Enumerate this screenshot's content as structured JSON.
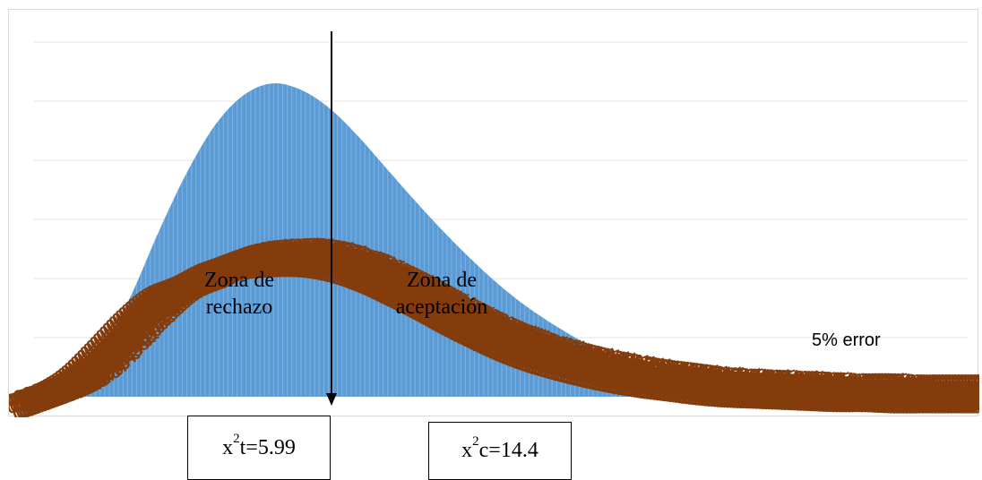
{
  "chart_data": {
    "type": "area",
    "title": "",
    "xlabel": "",
    "ylabel": "",
    "grid": true,
    "legend": "none",
    "xlim": [
      0,
      34
    ],
    "ylim": [
      0,
      0.3
    ],
    "gridlines_y": [
      0.05,
      0.1,
      0.15,
      0.2,
      0.25,
      0.3
    ],
    "series": [
      {
        "kind": "area",
        "color": "#5b9bd5",
        "x": [
          0,
          1,
          2,
          3,
          4,
          5,
          6,
          7,
          8,
          9,
          10,
          11,
          12,
          13,
          14,
          15,
          16,
          17,
          18,
          19,
          20,
          21,
          22,
          23,
          24,
          25,
          26,
          27,
          28,
          29,
          30,
          31,
          32,
          33,
          34
        ],
        "y": [
          0.0,
          0.0,
          0.005,
          0.04,
          0.085,
          0.14,
          0.19,
          0.23,
          0.255,
          0.265,
          0.26,
          0.245,
          0.222,
          0.195,
          0.168,
          0.142,
          0.118,
          0.096,
          0.077,
          0.061,
          0.047,
          0.036,
          0.027,
          0.02,
          0.015,
          0.011,
          0.008,
          0.006,
          0.004,
          0.003,
          0.002,
          0.0015,
          0.001,
          0.0005,
          0.0
        ]
      },
      {
        "kind": "data-labels",
        "color": "#843c0c",
        "x": [
          0,
          1,
          2,
          3,
          4,
          5,
          6,
          7,
          8,
          9,
          10,
          11,
          12,
          13,
          14,
          15,
          16,
          17,
          18,
          19,
          20,
          21,
          22,
          23,
          24,
          25,
          26,
          27,
          28,
          29,
          30,
          31,
          32,
          33,
          34
        ],
        "y": [
          0.0,
          0.008,
          0.022,
          0.045,
          0.07,
          0.09,
          0.1,
          0.112,
          0.118,
          0.12,
          0.12,
          0.116,
          0.108,
          0.097,
          0.085,
          0.072,
          0.06,
          0.049,
          0.04,
          0.033,
          0.027,
          0.022,
          0.018,
          0.015,
          0.012,
          0.01,
          0.009,
          0.008,
          0.007,
          0.006,
          0.006,
          0.005,
          0.005,
          0.005,
          0.005
        ]
      }
    ],
    "critical_value": 5.99,
    "calculated_value": 14.4
  },
  "labels": {
    "zone_rechazo_line1": "Zona de",
    "zone_rechazo_line2": "rechazo",
    "zone_aceptacion_line1": "Zona de",
    "zone_aceptacion_line2": "aceptación",
    "error": "5% error",
    "xt_prefix": "x",
    "xt_sup": "2",
    "xt_suffix": "t=5.99",
    "xc_prefix": "x",
    "xc_sup": "2",
    "xc_suffix": "c=14.4"
  },
  "colors": {
    "area": "#5b9bd5",
    "bar_stroke": "#9dc3e6",
    "labels": "#843c0c",
    "gridline": "#e3e3e3",
    "arrow": "#000000"
  }
}
